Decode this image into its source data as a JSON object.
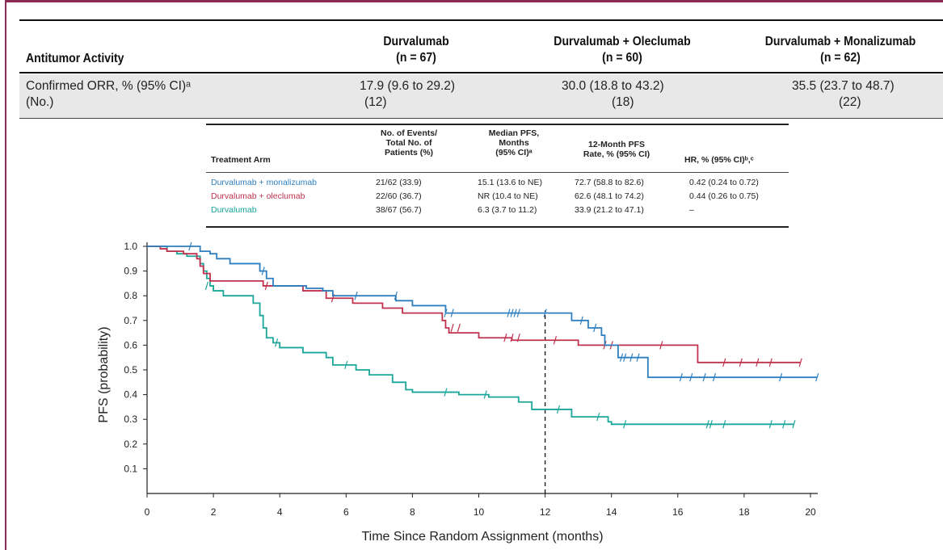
{
  "table": {
    "header_label": "Antitumor Activity",
    "columns": [
      {
        "name": "Durvalumab",
        "n": "(n = 67)"
      },
      {
        "name": "Durvalumab + Oleclumab",
        "n": "(n = 60)"
      },
      {
        "name": "Durvalumab + Monalizumab",
        "n": "(n = 62)"
      }
    ],
    "row_label_line1": "Confirmed ORR, % (95% CI)ᵃ",
    "row_label_line2": "(No.)",
    "values": [
      {
        "orr": "17.9 (9.6 to 29.2)",
        "count": "(12)"
      },
      {
        "orr": "30.0 (18.8 to 43.2)",
        "count": "(18)"
      },
      {
        "orr": "35.5 (23.7 to 48.7)",
        "count": "(22)"
      }
    ]
  },
  "pfs_table": {
    "headers": {
      "arm": "Treatment Arm",
      "events_1": "No. of Events/",
      "events_2": "Total No. of",
      "events_3": "Patients (%)",
      "median_1": "Median PFS,",
      "median_2": "Months",
      "median_3": "(95% CI)ᵃ",
      "rate_1": "12-Month PFS",
      "rate_2": "Rate, % (95% CI)",
      "hr": "HR, % (95% CI)ᵇ,ᶜ"
    },
    "rows": [
      {
        "arm": "Durvalumab + monalizumab",
        "events": "21/62 (33.9)",
        "median": "15.1 (13.6 to NE)",
        "rate": "72.7 (58.8 to 82.6)",
        "hr": "0.42 (0.24 to 0.72)",
        "color": "#2f7fbf"
      },
      {
        "arm": "Durvalumab + oleclumab",
        "events": "22/60 (36.7)",
        "median": "NR (10.4 to NE)",
        "rate": "62.6 (48.1 to 74.2)",
        "hr": "0.44 (0.26 to 0.75)",
        "color": "#c0314e"
      },
      {
        "arm": "Durvalumab",
        "events": "38/67 (56.7)",
        "median": "6.3 (3.7 to 11.2)",
        "rate": "33.9 (21.2 to 47.1)",
        "hr": "–",
        "color": "#1aa69a"
      }
    ]
  },
  "chart_data": {
    "type": "line",
    "xlabel": "Time Since Random Assignment (months)",
    "ylabel": "PFS (probability)",
    "xlim": [
      0,
      20
    ],
    "ylim": [
      0,
      1.0
    ],
    "xticks": [
      0,
      2,
      4,
      6,
      8,
      10,
      12,
      14,
      16,
      18,
      20
    ],
    "yticks": [
      0.1,
      0.2,
      0.3,
      0.4,
      0.5,
      0.6,
      0.7,
      0.8,
      0.9,
      1.0
    ],
    "reference_line_x": 12,
    "series": [
      {
        "name": "Durvalumab + monalizumab",
        "color": "#2f7fbf",
        "steps": [
          [
            0,
            1.0
          ],
          [
            0.9,
            1.0
          ],
          [
            1.6,
            0.98
          ],
          [
            1.9,
            0.97
          ],
          [
            2.1,
            0.95
          ],
          [
            2.5,
            0.93
          ],
          [
            3.4,
            0.9
          ],
          [
            3.6,
            0.87
          ],
          [
            3.8,
            0.84
          ],
          [
            4.8,
            0.83
          ],
          [
            5.3,
            0.82
          ],
          [
            5.6,
            0.8
          ],
          [
            7.5,
            0.78
          ],
          [
            8.0,
            0.76
          ],
          [
            9.0,
            0.73
          ],
          [
            12.8,
            0.7
          ],
          [
            13.3,
            0.67
          ],
          [
            13.7,
            0.64
          ],
          [
            13.8,
            0.6
          ],
          [
            14.2,
            0.55
          ],
          [
            15.1,
            0.47
          ],
          [
            20.2,
            0.47
          ]
        ],
        "censor": [
          [
            1.3,
            1.0
          ],
          [
            3.5,
            0.9
          ],
          [
            6.3,
            0.8
          ],
          [
            7.5,
            0.8
          ],
          [
            9.0,
            0.73
          ],
          [
            9.2,
            0.73
          ],
          [
            10.9,
            0.73
          ],
          [
            11.0,
            0.73
          ],
          [
            11.1,
            0.73
          ],
          [
            11.2,
            0.73
          ],
          [
            12.0,
            0.73
          ],
          [
            13.1,
            0.7
          ],
          [
            13.5,
            0.67
          ],
          [
            14.3,
            0.55
          ],
          [
            14.4,
            0.55
          ],
          [
            14.6,
            0.55
          ],
          [
            14.8,
            0.55
          ],
          [
            16.1,
            0.47
          ],
          [
            16.4,
            0.47
          ],
          [
            16.8,
            0.47
          ],
          [
            17.1,
            0.47
          ],
          [
            19.1,
            0.47
          ],
          [
            20.2,
            0.47
          ]
        ]
      },
      {
        "name": "Durvalumab + oleclumab",
        "color": "#c0314e",
        "steps": [
          [
            0,
            1.0
          ],
          [
            0.4,
            0.99
          ],
          [
            0.6,
            0.98
          ],
          [
            1.1,
            0.97
          ],
          [
            1.5,
            0.95
          ],
          [
            1.6,
            0.92
          ],
          [
            1.7,
            0.89
          ],
          [
            1.9,
            0.86
          ],
          [
            3.5,
            0.84
          ],
          [
            4.7,
            0.82
          ],
          [
            5.4,
            0.79
          ],
          [
            6.2,
            0.77
          ],
          [
            7.1,
            0.75
          ],
          [
            7.7,
            0.73
          ],
          [
            8.9,
            0.7
          ],
          [
            9.0,
            0.67
          ],
          [
            9.1,
            0.65
          ],
          [
            10.0,
            0.63
          ],
          [
            11.0,
            0.62
          ],
          [
            13.0,
            0.6
          ],
          [
            16.6,
            0.53
          ],
          [
            19.7,
            0.53
          ]
        ],
        "censor": [
          [
            3.6,
            0.84
          ],
          [
            5.6,
            0.79
          ],
          [
            9.2,
            0.67
          ],
          [
            9.4,
            0.67
          ],
          [
            10.8,
            0.63
          ],
          [
            11.0,
            0.63
          ],
          [
            11.2,
            0.63
          ],
          [
            12.3,
            0.62
          ],
          [
            13.8,
            0.6
          ],
          [
            14.0,
            0.6
          ],
          [
            15.5,
            0.6
          ],
          [
            17.4,
            0.53
          ],
          [
            17.9,
            0.53
          ],
          [
            18.4,
            0.53
          ],
          [
            18.8,
            0.53
          ],
          [
            19.7,
            0.53
          ]
        ]
      },
      {
        "name": "Durvalumab",
        "color": "#1aa69a",
        "steps": [
          [
            0,
            1.0
          ],
          [
            0.6,
            0.98
          ],
          [
            0.9,
            0.97
          ],
          [
            1.2,
            0.96
          ],
          [
            1.6,
            0.93
          ],
          [
            1.7,
            0.9
          ],
          [
            1.8,
            0.87
          ],
          [
            1.9,
            0.84
          ],
          [
            2.0,
            0.82
          ],
          [
            2.3,
            0.8
          ],
          [
            3.2,
            0.77
          ],
          [
            3.4,
            0.72
          ],
          [
            3.5,
            0.67
          ],
          [
            3.6,
            0.63
          ],
          [
            3.8,
            0.61
          ],
          [
            4.0,
            0.59
          ],
          [
            4.7,
            0.57
          ],
          [
            5.4,
            0.55
          ],
          [
            5.6,
            0.52
          ],
          [
            6.3,
            0.5
          ],
          [
            6.7,
            0.48
          ],
          [
            7.4,
            0.45
          ],
          [
            7.8,
            0.42
          ],
          [
            8.0,
            0.41
          ],
          [
            9.4,
            0.4
          ],
          [
            10.3,
            0.39
          ],
          [
            11.2,
            0.37
          ],
          [
            11.6,
            0.34
          ],
          [
            12.8,
            0.31
          ],
          [
            13.9,
            0.29
          ],
          [
            14.0,
            0.28
          ],
          [
            19.5,
            0.28
          ]
        ],
        "censor": [
          [
            1.8,
            0.84
          ],
          [
            3.9,
            0.61
          ],
          [
            6.0,
            0.52
          ],
          [
            9.0,
            0.41
          ],
          [
            10.2,
            0.4
          ],
          [
            12.4,
            0.34
          ],
          [
            13.6,
            0.31
          ],
          [
            14.4,
            0.28
          ],
          [
            16.9,
            0.28
          ],
          [
            17.0,
            0.28
          ],
          [
            17.4,
            0.28
          ],
          [
            18.8,
            0.28
          ],
          [
            19.2,
            0.28
          ],
          [
            19.5,
            0.28
          ]
        ]
      }
    ]
  }
}
